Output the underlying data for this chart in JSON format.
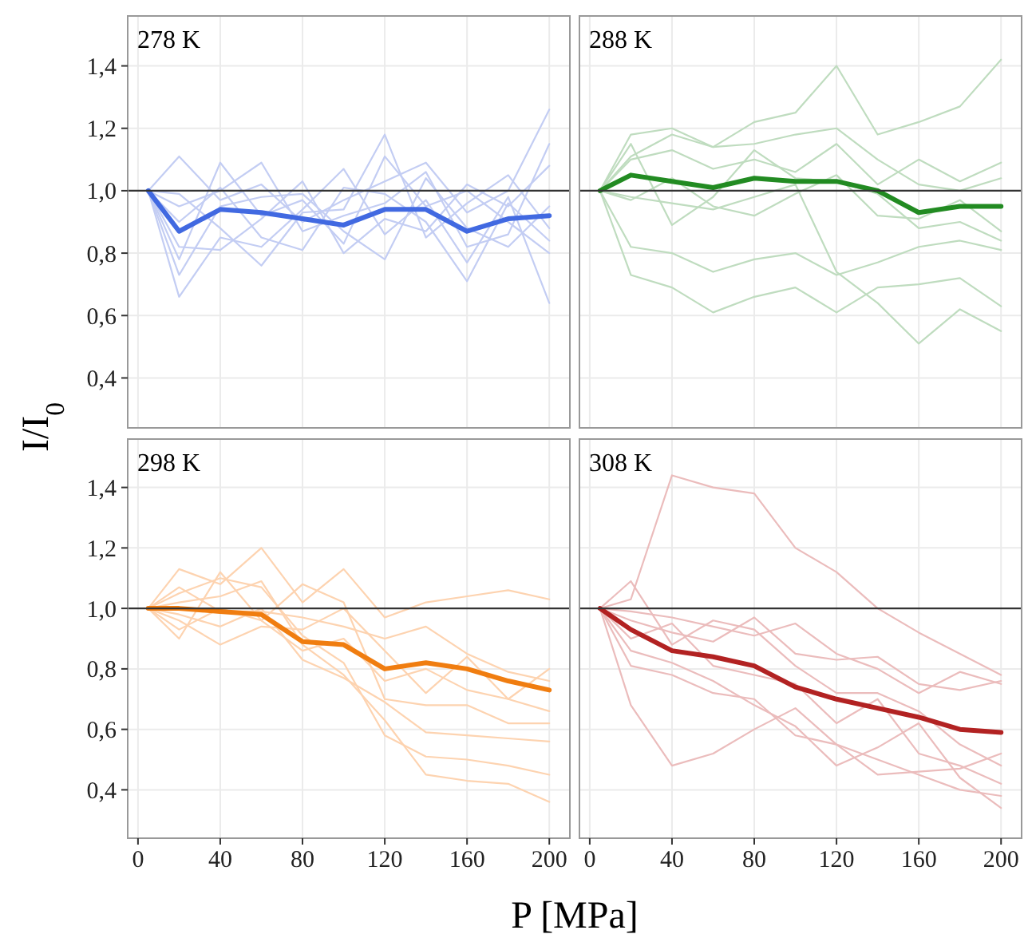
{
  "chart_data": [
    {
      "type": "line",
      "title": "278 K",
      "ylabel": "I/I$_{0}$",
      "x": [
        5,
        20,
        40,
        60,
        80,
        100,
        120,
        140,
        160,
        180,
        200
      ],
      "xlim": [
        -5,
        210
      ],
      "ylim": [
        0.24,
        1.56
      ],
      "xticks": [
        0,
        40,
        80,
        120,
        160,
        200
      ],
      "yticks": [
        {
          "value": 0.4,
          "label": "0,4"
        },
        {
          "value": 0.6,
          "label": "0,6"
        },
        {
          "value": 0.8,
          "label": "0,8"
        },
        {
          "value": 1.0,
          "label": "1,0"
        },
        {
          "value": 1.2,
          "label": "1,2"
        },
        {
          "value": 1.4,
          "label": "1,4"
        }
      ],
      "grid": true,
      "tick_labels": "y",
      "ref_lines": [
        {
          "axis": "y",
          "value": 1.0,
          "color": "#333333"
        }
      ],
      "series": [
        {
          "color": "#c3cdf3",
          "values": [
            1,
            1.11,
            0.97,
            1.02,
            0.9,
            0.97,
            1.03,
            1.09,
            0.93,
            1.0,
            1.26
          ]
        },
        {
          "color": "#c3cdf3",
          "values": [
            1,
            0.78,
            1.09,
            0.92,
            0.97,
            0.83,
            1.11,
            0.95,
            1.0,
            0.9,
            0.8
          ]
        },
        {
          "color": "#c3cdf3",
          "values": [
            1,
            0.66,
            0.85,
            0.82,
            0.94,
            1.07,
            0.86,
            0.97,
            0.77,
            0.98,
            0.64
          ]
        },
        {
          "color": "#c3cdf3",
          "values": [
            1,
            0.95,
            1.0,
            1.09,
            0.87,
            0.92,
            0.96,
            1.06,
            0.82,
            0.86,
            1.15
          ]
        },
        {
          "color": "#c3cdf3",
          "values": [
            1,
            0.82,
            0.81,
            0.91,
            1.03,
            0.8,
            0.91,
            0.87,
            1.02,
            0.95,
            1.08
          ]
        },
        {
          "color": "#c3cdf3",
          "values": [
            1,
            0.9,
            1.01,
            0.85,
            0.81,
            1.01,
            0.99,
            0.9,
            0.71,
            0.96,
            0.84
          ]
        },
        {
          "color": "#c3cdf3",
          "values": [
            1,
            0.73,
            0.95,
            0.98,
            0.99,
            0.87,
            0.78,
            1.04,
            0.88,
            0.82,
            0.95
          ]
        },
        {
          "color": "#c3cdf3",
          "values": [
            1,
            0.99,
            0.88,
            0.76,
            0.93,
            0.94,
            1.18,
            0.85,
            0.96,
            1.05,
            0.88
          ]
        },
        {
          "color": "#4169e1",
          "values": [
            1,
            0.87,
            0.94,
            0.93,
            0.91,
            0.89,
            0.94,
            0.94,
            0.87,
            0.91,
            0.92
          ]
        }
      ]
    },
    {
      "type": "line",
      "title": "288 K",
      "x": [
        5,
        20,
        40,
        60,
        80,
        100,
        120,
        140,
        160,
        180,
        200
      ],
      "xlim": [
        -5,
        210
      ],
      "ylim": [
        0.24,
        1.56
      ],
      "xticks": [
        0,
        40,
        80,
        120,
        160,
        200
      ],
      "yticks": [
        0.4,
        0.6,
        0.8,
        1.0,
        1.2,
        1.4
      ],
      "grid": true,
      "tick_labels": false,
      "ref_lines": [
        {
          "axis": "y",
          "value": 1.0,
          "color": "#333333"
        }
      ],
      "series": [
        {
          "color": "#bfdcbf",
          "values": [
            1,
            1.11,
            1.18,
            1.14,
            1.22,
            1.25,
            1.4,
            1.18,
            1.22,
            1.27,
            1.42
          ]
        },
        {
          "color": "#bfdcbf",
          "values": [
            1,
            0.73,
            0.69,
            0.61,
            0.66,
            0.69,
            0.61,
            0.69,
            0.7,
            0.72,
            0.63
          ]
        },
        {
          "color": "#bfdcbf",
          "values": [
            1,
            0.82,
            0.8,
            0.74,
            0.78,
            0.8,
            0.73,
            0.77,
            0.82,
            0.84,
            0.81
          ]
        },
        {
          "color": "#bfdcbf",
          "values": [
            1,
            0.98,
            0.96,
            0.94,
            0.98,
            1.02,
            0.74,
            0.64,
            0.51,
            0.62,
            0.55
          ]
        },
        {
          "color": "#bfdcbf",
          "values": [
            1,
            1.18,
            1.2,
            1.14,
            1.15,
            1.18,
            1.2,
            1.1,
            1.02,
            1.0,
            1.04
          ]
        },
        {
          "color": "#bfdcbf",
          "values": [
            1,
            1.15,
            0.89,
            0.98,
            1.13,
            1.04,
            1.03,
            0.99,
            0.88,
            0.9,
            0.84
          ]
        },
        {
          "color": "#bfdcbf",
          "values": [
            1,
            1.1,
            1.13,
            1.07,
            1.1,
            1.06,
            1.15,
            1.02,
            1.1,
            1.03,
            1.09
          ]
        },
        {
          "color": "#bfdcbf",
          "values": [
            1,
            0.97,
            1.04,
            0.95,
            0.92,
            0.99,
            1.05,
            0.92,
            0.91,
            0.97,
            0.87
          ]
        },
        {
          "color": "#228b22",
          "values": [
            1,
            1.05,
            1.03,
            1.01,
            1.04,
            1.03,
            1.03,
            1.0,
            0.93,
            0.95,
            0.95
          ]
        }
      ]
    },
    {
      "type": "line",
      "title": "298 K",
      "xlabel": "P [MPa]",
      "x": [
        5,
        20,
        40,
        60,
        80,
        100,
        120,
        140,
        160,
        180,
        200
      ],
      "xlim": [
        -5,
        210
      ],
      "ylim": [
        0.24,
        1.56
      ],
      "xticks": [
        0,
        40,
        80,
        120,
        160,
        200
      ],
      "yticks": [
        {
          "value": 0.4,
          "label": "0,4"
        },
        {
          "value": 0.6,
          "label": "0,6"
        },
        {
          "value": 0.8,
          "label": "0,8"
        },
        {
          "value": 1.0,
          "label": "1,0"
        },
        {
          "value": 1.2,
          "label": "1,2"
        },
        {
          "value": 1.4,
          "label": "1,4"
        }
      ],
      "grid": true,
      "ref_lines": [
        {
          "axis": "y",
          "value": 1.0,
          "color": "#333333"
        }
      ],
      "series": [
        {
          "color": "#fdd3b0",
          "values": [
            1,
            1.13,
            1.08,
            1.2,
            1.02,
            1.13,
            0.97,
            1.02,
            1.04,
            1.06,
            1.03
          ]
        },
        {
          "color": "#fdd3b0",
          "values": [
            1,
            0.9,
            1.12,
            0.96,
            1.08,
            1.02,
            0.7,
            0.68,
            0.68,
            0.62,
            0.62
          ]
        },
        {
          "color": "#fdd3b0",
          "values": [
            1,
            1.05,
            1.1,
            1.07,
            0.91,
            0.82,
            0.58,
            0.51,
            0.5,
            0.48,
            0.45
          ]
        },
        {
          "color": "#fdd3b0",
          "values": [
            1,
            0.98,
            0.94,
            1.0,
            0.83,
            0.77,
            0.69,
            0.59,
            0.58,
            0.57,
            0.56
          ]
        },
        {
          "color": "#fdd3b0",
          "values": [
            1,
            1.02,
            1.04,
            1.09,
            0.88,
            0.78,
            0.63,
            0.45,
            0.43,
            0.42,
            0.36
          ]
        },
        {
          "color": "#fdd3b0",
          "values": [
            1,
            0.96,
            0.88,
            0.94,
            0.93,
            1.0,
            0.86,
            0.72,
            0.84,
            0.7,
            0.8
          ]
        },
        {
          "color": "#fdd3b0",
          "values": [
            1,
            1.07,
            0.99,
            0.99,
            0.97,
            0.94,
            0.9,
            0.94,
            0.85,
            0.79,
            0.76
          ]
        },
        {
          "color": "#fdd3b0",
          "values": [
            1,
            0.93,
            1.0,
            0.96,
            0.86,
            0.9,
            0.76,
            0.8,
            0.73,
            0.7,
            0.66
          ]
        },
        {
          "color": "#f07d10",
          "values": [
            1,
            1.0,
            0.99,
            0.98,
            0.89,
            0.88,
            0.8,
            0.82,
            0.8,
            0.76,
            0.73
          ]
        }
      ]
    },
    {
      "type": "line",
      "title": "308 K",
      "x": [
        5,
        20,
        40,
        60,
        80,
        100,
        120,
        140,
        160,
        180,
        200
      ],
      "xlim": [
        -5,
        210
      ],
      "ylim": [
        0.24,
        1.56
      ],
      "xticks": [
        0,
        40,
        80,
        120,
        160,
        200
      ],
      "yticks": [
        0.4,
        0.6,
        0.8,
        1.0,
        1.2,
        1.4
      ],
      "grid": true,
      "tick_labels": "x",
      "ref_lines": [
        {
          "axis": "y",
          "value": 1.0,
          "color": "#333333"
        }
      ],
      "series": [
        {
          "color": "#ebbcbc",
          "values": [
            1,
            1.03,
            1.44,
            1.4,
            1.38,
            1.2,
            1.12,
            1.0,
            0.92,
            0.85,
            0.78
          ]
        },
        {
          "color": "#ebbcbc",
          "values": [
            1,
            1.09,
            0.88,
            0.96,
            0.93,
            0.81,
            0.72,
            0.72,
            0.66,
            0.55,
            0.48
          ]
        },
        {
          "color": "#ebbcbc",
          "values": [
            1,
            0.68,
            0.48,
            0.52,
            0.6,
            0.67,
            0.55,
            0.45,
            0.46,
            0.47,
            0.52
          ]
        },
        {
          "color": "#ebbcbc",
          "values": [
            1,
            0.96,
            0.92,
            0.89,
            0.97,
            0.85,
            0.83,
            0.84,
            0.75,
            0.73,
            0.76
          ]
        },
        {
          "color": "#ebbcbc",
          "values": [
            1,
            0.81,
            0.78,
            0.72,
            0.7,
            0.58,
            0.55,
            0.5,
            0.45,
            0.4,
            0.38
          ]
        },
        {
          "color": "#ebbcbc",
          "values": [
            1,
            0.9,
            0.95,
            0.81,
            0.78,
            0.75,
            0.62,
            0.7,
            0.52,
            0.48,
            0.42
          ]
        },
        {
          "color": "#ebbcbc",
          "values": [
            1,
            0.86,
            0.82,
            0.76,
            0.68,
            0.61,
            0.48,
            0.54,
            0.62,
            0.44,
            0.34
          ]
        },
        {
          "color": "#ebbcbc",
          "values": [
            1,
            0.99,
            0.97,
            0.94,
            0.91,
            0.95,
            0.85,
            0.8,
            0.72,
            0.79,
            0.75
          ]
        },
        {
          "color": "#b22222",
          "values": [
            1,
            0.93,
            0.86,
            0.84,
            0.81,
            0.74,
            0.7,
            0.67,
            0.64,
            0.6,
            0.59
          ]
        }
      ]
    }
  ]
}
